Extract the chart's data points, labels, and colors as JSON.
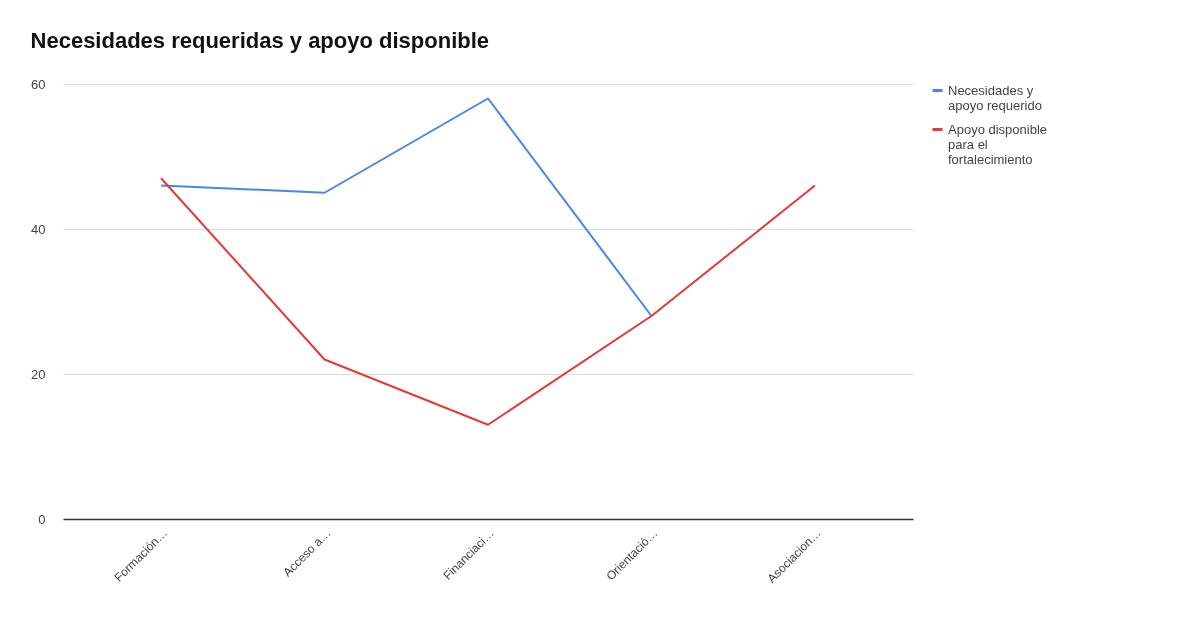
{
  "chart_data": {
    "type": "line",
    "title": "Necesidades requeridas y apoyo disponible",
    "categories": [
      "Formación…",
      "Acceso a…",
      "Financiaci…",
      "Orientació…",
      "Asociacion…"
    ],
    "series": [
      {
        "name": "Necesidades y apoyo requerido",
        "color": "#4a86e8",
        "values": [
          46,
          45,
          58,
          28,
          null
        ]
      },
      {
        "name": "Apoyo disponible para el fortalecimiento",
        "color": "#e53935",
        "values": [
          47,
          22,
          13,
          28,
          46
        ]
      }
    ],
    "ylim": [
      0,
      60
    ],
    "yticks": [
      0,
      20,
      40,
      60
    ],
    "grid": "y",
    "legend": "right",
    "marker": "none",
    "line_style": "solid"
  }
}
